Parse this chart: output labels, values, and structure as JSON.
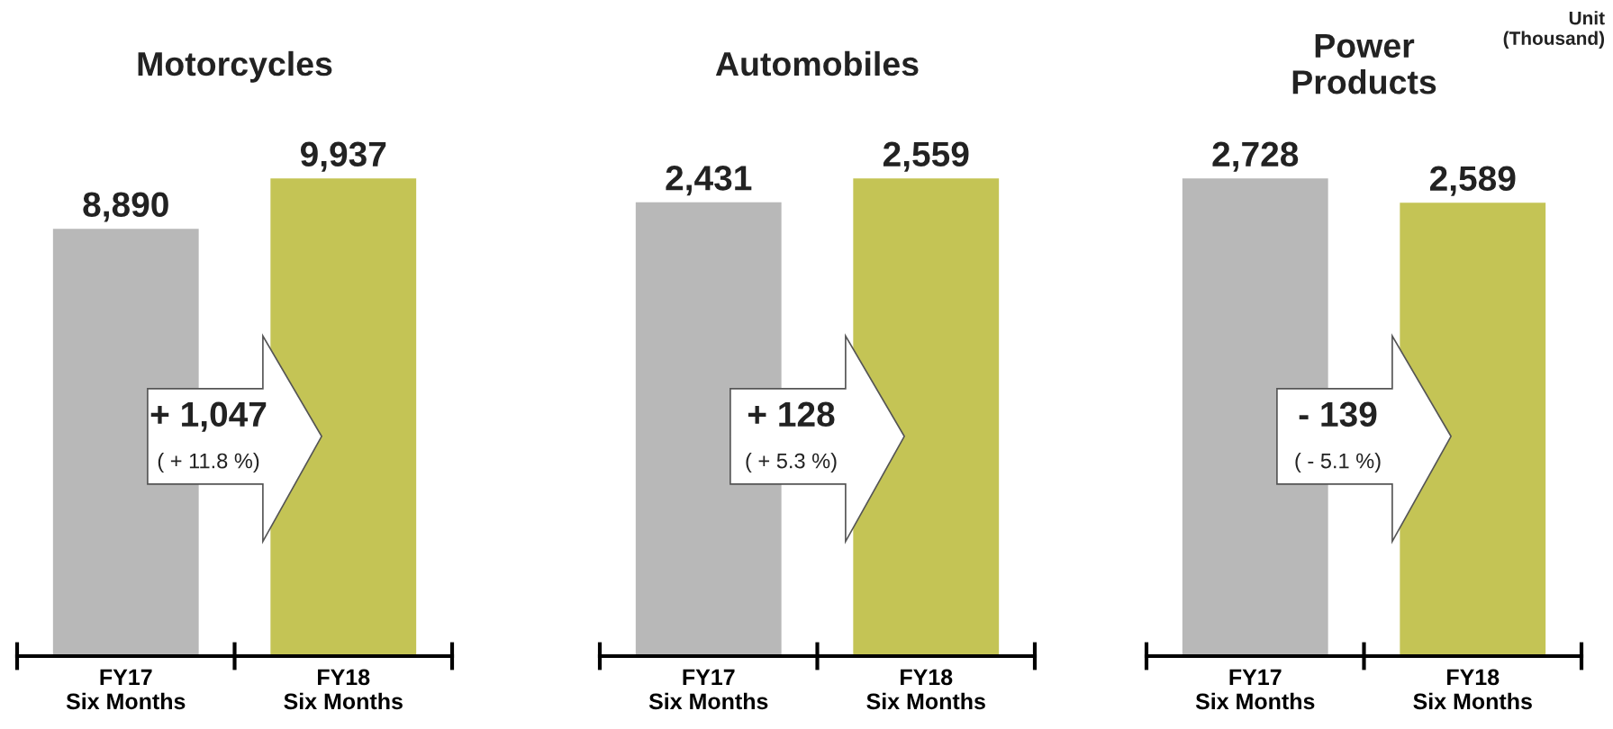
{
  "chart_data": [
    {
      "type": "bar",
      "title": "Motorcycles",
      "categories": [
        "FY17\nSix Months",
        "FY18\nSix Months"
      ],
      "values": [
        8890,
        9937
      ],
      "colors": [
        "#b8b8b8",
        "#c4c455"
      ],
      "data_labels": true,
      "value_labels": [
        "8,890",
        "9,937"
      ],
      "annotations": [
        "+ 1,047",
        "( + 11.8 %)"
      ]
    },
    {
      "type": "bar",
      "title": "Automobiles",
      "categories": [
        "FY17\nSix Months",
        "FY18\nSix Months"
      ],
      "values": [
        2431,
        2559
      ],
      "colors": [
        "#b8b8b8",
        "#c4c455"
      ],
      "data_labels": true,
      "value_labels": [
        "2,431",
        "2,559"
      ],
      "annotations": [
        "+ 128",
        "( + 5.3 %)"
      ]
    },
    {
      "type": "bar",
      "title": "Power\nProducts",
      "categories": [
        "FY17\nSix Months",
        "FY18\nSix Months"
      ],
      "values": [
        2728,
        2589
      ],
      "colors": [
        "#b8b8b8",
        "#c4c455"
      ],
      "data_labels": true,
      "value_labels": [
        "2,728",
        "2,589"
      ],
      "annotations": [
        "- 139",
        "( - 5.1 %)",
        "Unit\n(Thousand)"
      ]
    }
  ]
}
